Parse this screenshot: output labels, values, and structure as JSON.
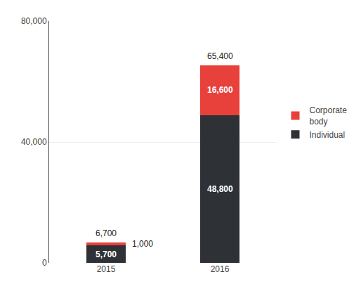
{
  "chart_data": {
    "type": "bar",
    "stacked": true,
    "categories": [
      "2015",
      "2016"
    ],
    "series": [
      {
        "name": "Individual",
        "color": "#2e3136",
        "values": [
          5700,
          48800
        ],
        "value_labels": [
          "5,700",
          "48,800"
        ]
      },
      {
        "name": "Corporate\nbody",
        "color": "#e8403a",
        "values": [
          1000,
          16600
        ],
        "value_labels": [
          "1,000",
          "16,600"
        ]
      }
    ],
    "totals": [
      6700,
      65400
    ],
    "total_labels": [
      "6,700",
      "65,400"
    ],
    "ylim": [
      0,
      80000
    ],
    "yticks": [
      0,
      {
        "value": 40000,
        "label": "40,000"
      },
      {
        "value": 80000,
        "label": "80,000"
      }
    ],
    "grid": true,
    "legend": "right",
    "data_labels": true
  }
}
